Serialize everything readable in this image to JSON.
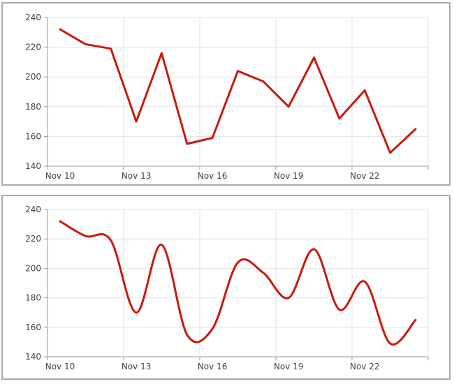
{
  "page": {
    "background": "#ffffff"
  },
  "style": {
    "grid_color": "#e2e2e2",
    "axis_color": "#9a9a9a",
    "tick_color": "#9a9a9a",
    "label_color": "#37474f",
    "panel_border_color": "#a9a9a9",
    "plot_background": "#ffffff",
    "line_width": 3
  },
  "panels": [
    {
      "name": "linear-line-chart-panel"
    },
    {
      "name": "smoothed-spline-chart-panel"
    }
  ],
  "chart_data": [
    {
      "type": "line",
      "smooth": false,
      "title": "",
      "xlabel": "",
      "ylabel": "",
      "legend": "none",
      "grid": true,
      "x": [
        "Nov 10",
        "Nov 11",
        "Nov 12",
        "Nov 13",
        "Nov 14",
        "Nov 15",
        "Nov 16",
        "Nov 17",
        "Nov 18",
        "Nov 19",
        "Nov 20",
        "Nov 21",
        "Nov 22",
        "Nov 23",
        "Nov 24"
      ],
      "values": [
        232,
        222,
        219,
        170,
        216,
        155,
        159,
        204,
        197,
        180,
        213,
        172,
        191,
        149,
        165
      ],
      "x_tick_labels": [
        "Nov 10",
        "Nov 13",
        "Nov 16",
        "Nov 19",
        "Nov 22"
      ],
      "x_label_every": 3,
      "y_ticks": [
        240,
        220,
        200,
        180,
        160,
        140
      ],
      "ylim": [
        140,
        240
      ],
      "line_color": "#c9190b"
    },
    {
      "type": "line",
      "smooth": true,
      "title": "",
      "xlabel": "",
      "ylabel": "",
      "legend": "none",
      "grid": true,
      "x": [
        "Nov 10",
        "Nov 11",
        "Nov 12",
        "Nov 13",
        "Nov 14",
        "Nov 15",
        "Nov 16",
        "Nov 17",
        "Nov 18",
        "Nov 19",
        "Nov 20",
        "Nov 21",
        "Nov 22",
        "Nov 23",
        "Nov 24"
      ],
      "values": [
        232,
        222,
        219,
        170,
        216,
        155,
        159,
        204,
        197,
        180,
        213,
        172,
        191,
        149,
        165
      ],
      "x_tick_labels": [
        "Nov 10",
        "Nov 13",
        "Nov 16",
        "Nov 19",
        "Nov 22"
      ],
      "x_label_every": 3,
      "y_ticks": [
        240,
        220,
        200,
        180,
        160,
        140
      ],
      "ylim": [
        140,
        240
      ],
      "line_color": "#c9190b"
    }
  ]
}
